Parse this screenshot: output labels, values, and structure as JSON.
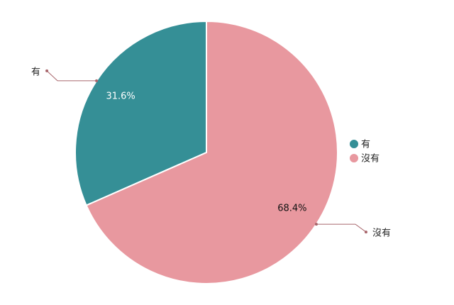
{
  "chart_data": {
    "type": "pie",
    "categories": [
      "有",
      "沒有"
    ],
    "values": [
      31.6,
      68.4
    ],
    "value_labels": [
      "31.6%",
      "68.4%"
    ],
    "colors": [
      "#358f96",
      "#e8989f"
    ],
    "legend": "right"
  }
}
